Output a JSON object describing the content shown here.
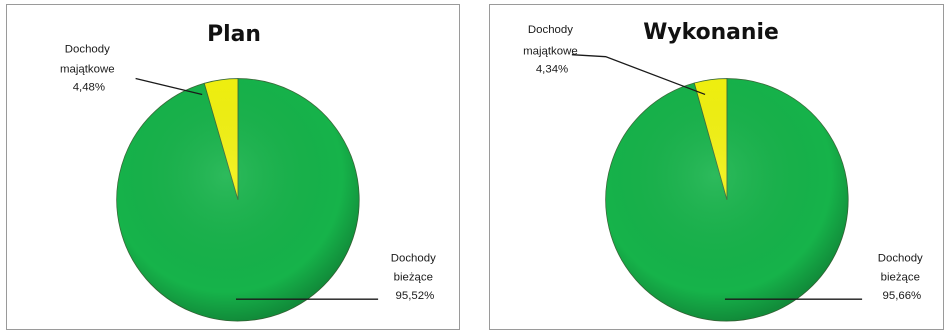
{
  "colors": {
    "biezace": "#16b34a",
    "majatkowe": "#f2f20f",
    "frame": "#9a9a9a"
  },
  "chart_data": [
    {
      "type": "pie",
      "title": "Plan",
      "slices": [
        {
          "label": [
            "Dochody",
            "bieżące"
          ],
          "value": 95.52,
          "value_label": "95,52%"
        },
        {
          "label": [
            "Dochody",
            "majątkowe"
          ],
          "value": 4.48,
          "value_label": "4,48%"
        }
      ]
    },
    {
      "type": "pie",
      "title": "Wykonanie",
      "slices": [
        {
          "label": [
            "Dochody",
            "bieżące"
          ],
          "value": 95.66,
          "value_label": "95,66%"
        },
        {
          "label": [
            "Dochody",
            "majątkowe"
          ],
          "value": 4.34,
          "value_label": "4,34%"
        }
      ]
    }
  ]
}
